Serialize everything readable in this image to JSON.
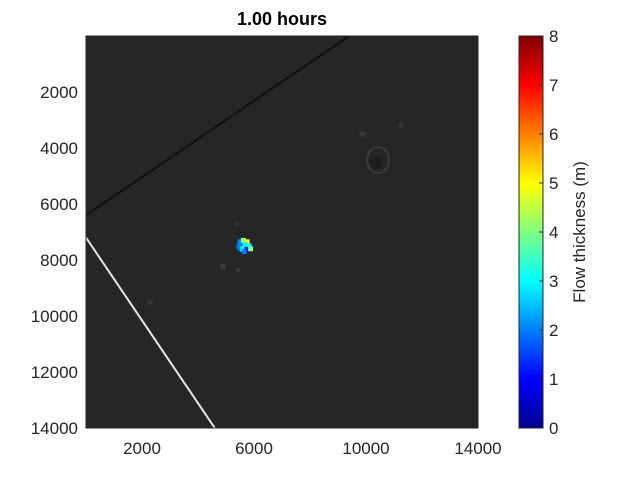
{
  "chart_data": {
    "type": "heatmap",
    "title": "1.00 hours",
    "xlabel": "",
    "ylabel": "",
    "xlim": [
      0,
      14000
    ],
    "ylim": [
      14000,
      0
    ],
    "y_reversed": true,
    "x_ticks": [
      2000,
      6000,
      10000,
      14000
    ],
    "x_tick_labels": [
      "2000",
      "6000",
      "10000",
      "14000"
    ],
    "y_ticks": [
      2000,
      4000,
      6000,
      8000,
      10000,
      12000,
      14000
    ],
    "y_tick_labels": [
      "2000",
      "4000",
      "6000",
      "8000",
      "10000",
      "12000",
      "14000"
    ],
    "grid": false,
    "background_color": "#262626",
    "colorbar": {
      "label": "Flow thickness (m)",
      "colormap": "jet",
      "range": [
        0,
        8
      ],
      "ticks": [
        0,
        1,
        2,
        3,
        4,
        5,
        6,
        7,
        8
      ],
      "tick_labels": [
        "0",
        "1",
        "2",
        "3",
        "4",
        "5",
        "6",
        "7",
        "8"
      ],
      "colors": [
        "#00008f",
        "#0000ff",
        "#0080ff",
        "#00ffff",
        "#80ff80",
        "#ffff00",
        "#ff8000",
        "#ff0000",
        "#800000"
      ]
    },
    "flow_patch": {
      "center": [
        5650,
        7520
      ],
      "points": [
        {
          "x": 5500,
          "y": 7350,
          "thickness": 2.2
        },
        {
          "x": 5620,
          "y": 7300,
          "thickness": 3.8
        },
        {
          "x": 5750,
          "y": 7350,
          "thickness": 5.0
        },
        {
          "x": 5550,
          "y": 7480,
          "thickness": 1.5
        },
        {
          "x": 5680,
          "y": 7450,
          "thickness": 3.0
        },
        {
          "x": 5820,
          "y": 7500,
          "thickness": 2.5
        },
        {
          "x": 5600,
          "y": 7600,
          "thickness": 2.8
        },
        {
          "x": 5750,
          "y": 7620,
          "thickness": 1.2
        },
        {
          "x": 5880,
          "y": 7600,
          "thickness": 3.5
        },
        {
          "x": 5650,
          "y": 7700,
          "thickness": 2.0
        }
      ]
    },
    "domain_boundaries": [
      {
        "name": "upper-boundary",
        "from": [
          0,
          6400
        ],
        "to": [
          9400,
          0
        ],
        "color": "#111111"
      },
      {
        "name": "lower-boundary",
        "from": [
          0,
          7200
        ],
        "to": [
          4600,
          14000
        ],
        "color": "#e6e6e6"
      }
    ]
  }
}
